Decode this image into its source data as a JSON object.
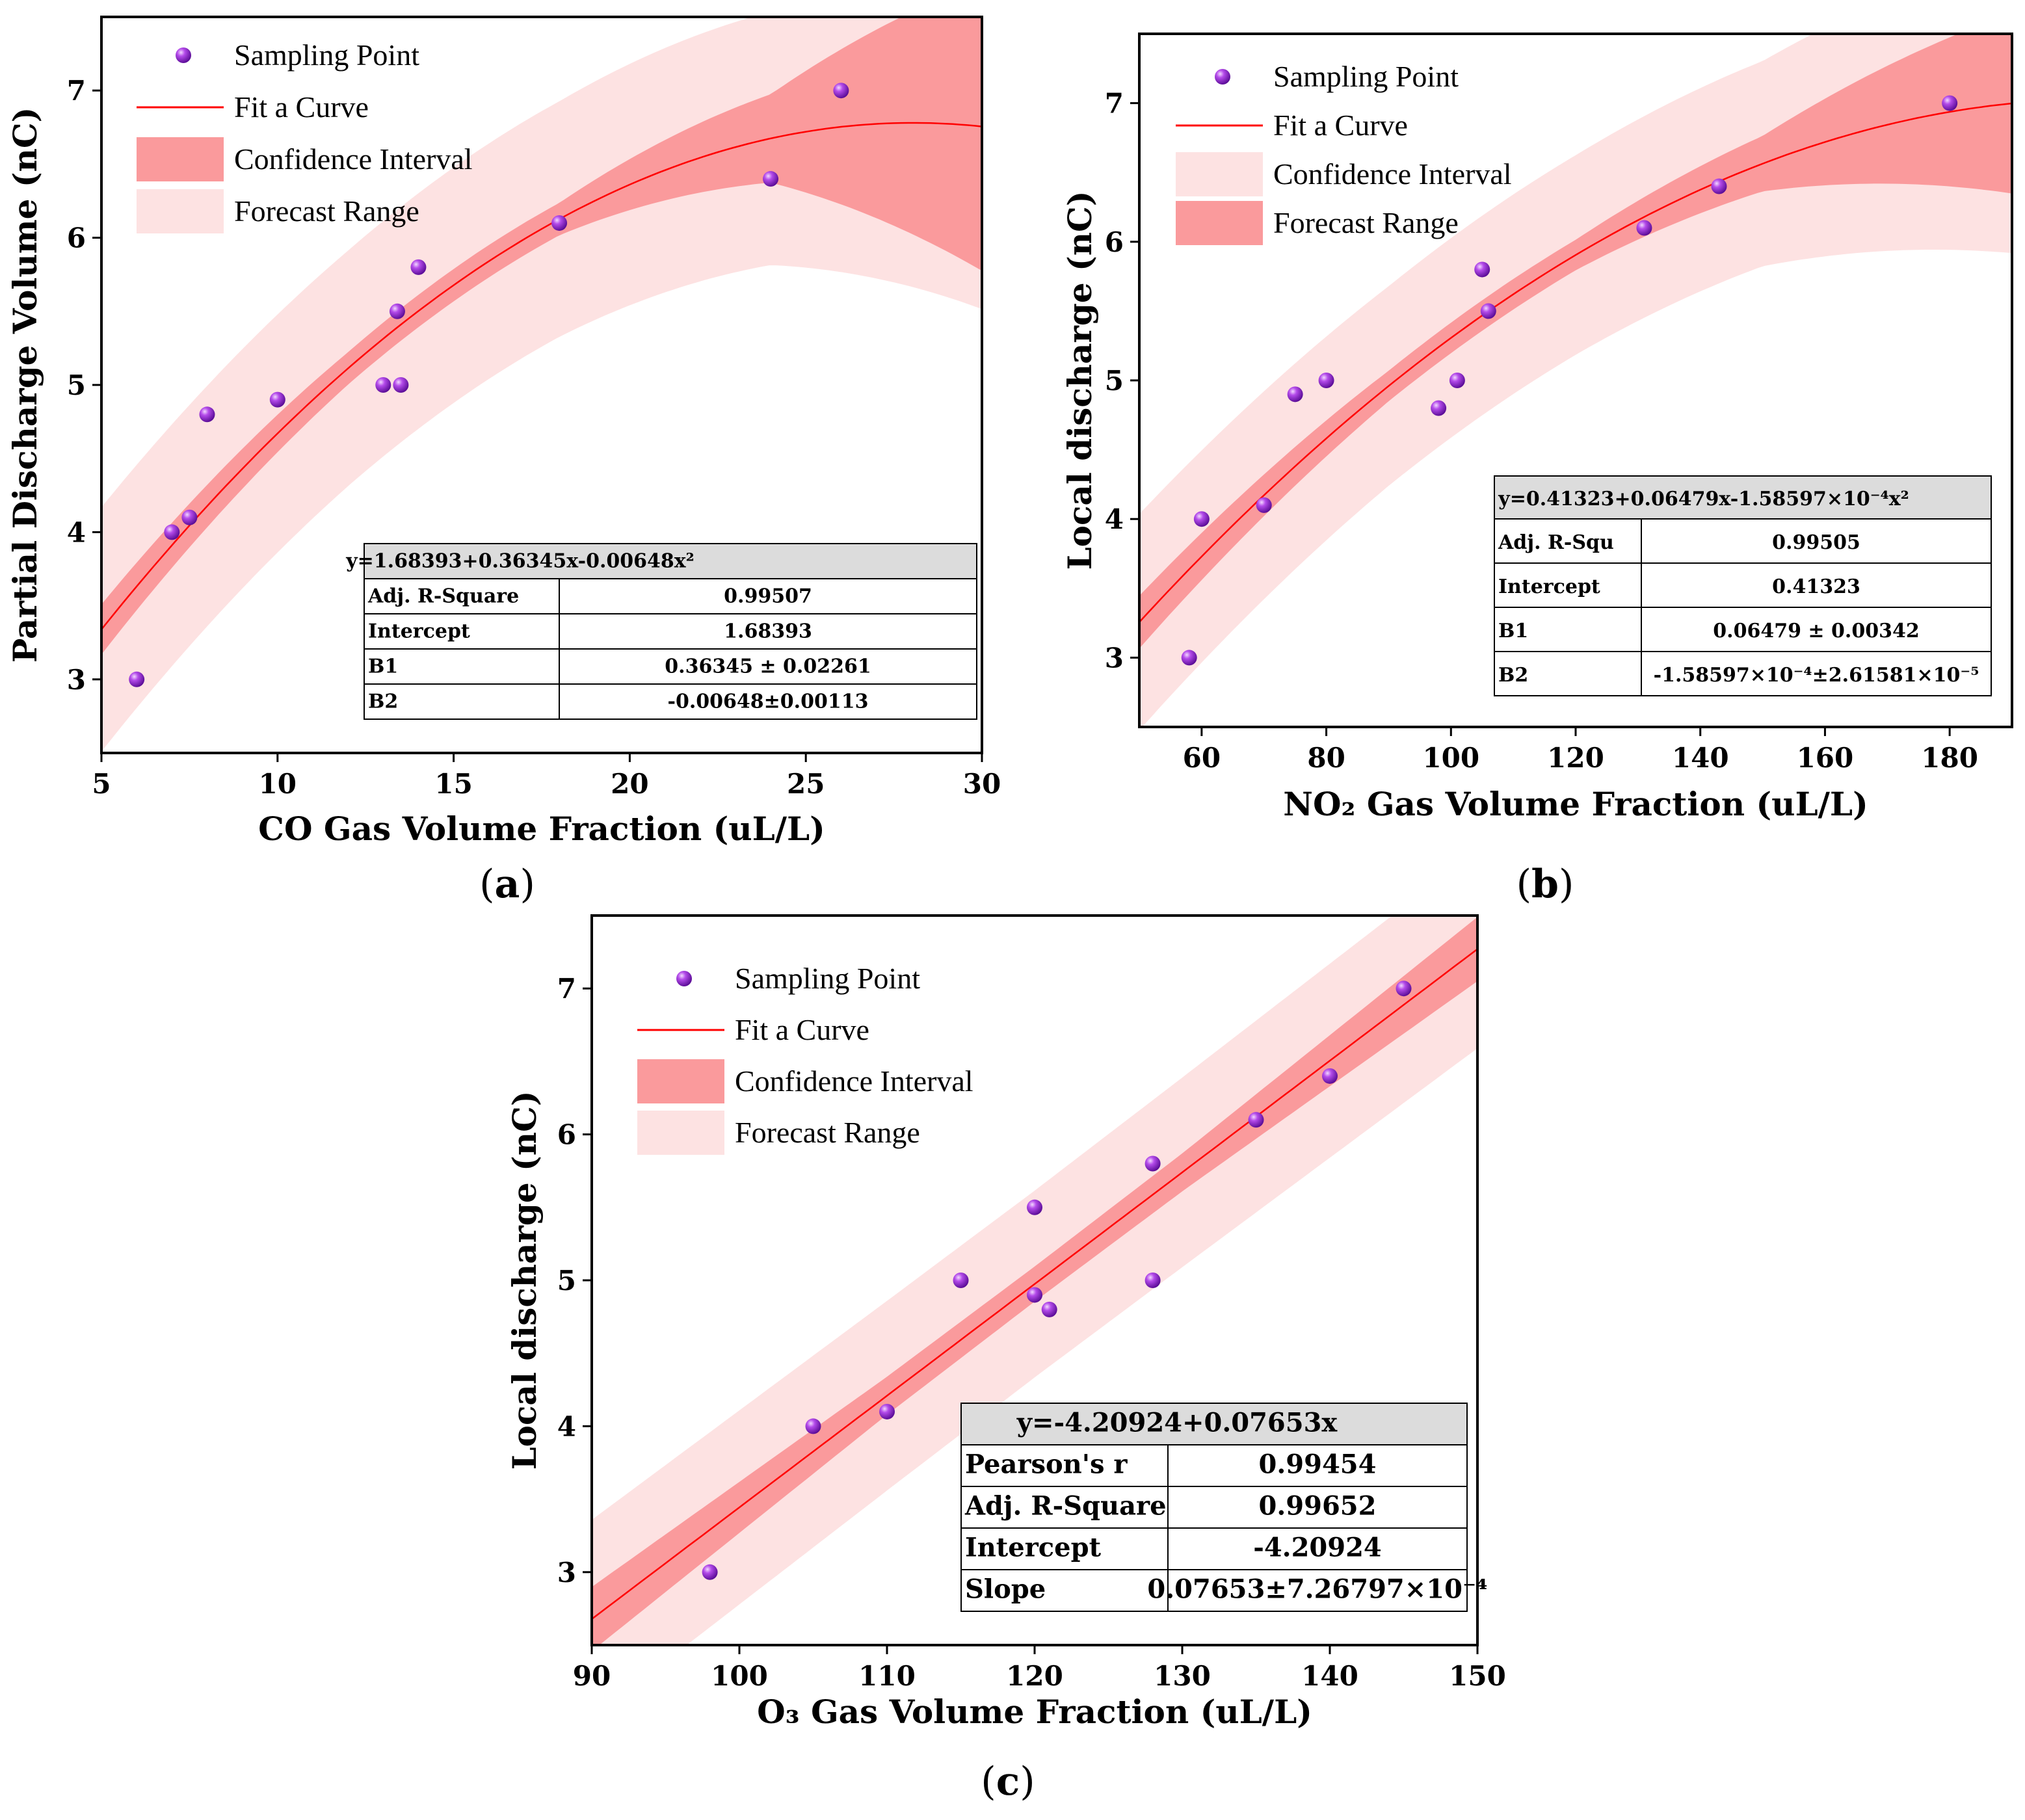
{
  "colors": {
    "forecast_band": "#FDE2E2",
    "confidence_band": "#FA9A9C",
    "fit_line": "#FF0000",
    "point": "#8E1FD6",
    "table_header_bg": "#DCDCDC"
  },
  "chart_data": [
    {
      "id": "a",
      "type": "scatter",
      "panel_label": "(a)",
      "panel_letter": "a",
      "xlabel": "CO Gas Volume Fraction (uL/L)",
      "ylabel": "Partial Discharge Volume (nC)",
      "xlim": [
        5,
        30
      ],
      "ylim": [
        2.5,
        7.5
      ],
      "xticks": [
        5,
        10,
        15,
        20,
        25,
        30
      ],
      "yticks": [
        3,
        4,
        5,
        6,
        7
      ],
      "fit": {
        "model": "quadratic",
        "coeffs": [
          1.68393,
          0.36345,
          -0.00648
        ]
      },
      "confidence_halfwidth": {
        "at_x": [
          5,
          12,
          18,
          24,
          30
        ],
        "values": [
          0.17,
          0.11,
          0.11,
          0.3,
          0.98
        ]
      },
      "forecast_halfwidth": {
        "at_x": [
          5,
          12,
          18,
          24,
          30
        ],
        "values": [
          0.83,
          0.8,
          0.8,
          0.86,
          1.24
        ]
      },
      "points": [
        {
          "x": 6,
          "y": 3.0
        },
        {
          "x": 7,
          "y": 4.0
        },
        {
          "x": 7.5,
          "y": 4.1
        },
        {
          "x": 8,
          "y": 4.8
        },
        {
          "x": 10,
          "y": 4.9
        },
        {
          "x": 13,
          "y": 5.0
        },
        {
          "x": 13.5,
          "y": 5.0
        },
        {
          "x": 13.4,
          "y": 5.5
        },
        {
          "x": 14,
          "y": 5.8
        },
        {
          "x": 18,
          "y": 6.1
        },
        {
          "x": 24,
          "y": 6.4
        },
        {
          "x": 26,
          "y": 7.0
        }
      ],
      "legend": [
        {
          "kind": "point",
          "label": "Sampling Point"
        },
        {
          "kind": "line",
          "label": "Fit a Curve"
        },
        {
          "kind": "confidence",
          "label": "Confidence Interval"
        },
        {
          "kind": "forecast",
          "label": "Forecast Range"
        }
      ],
      "stats_table": {
        "equation": "y=1.68393+0.36345x-0.00648x²",
        "rows": [
          [
            "Adj. R-Square",
            "0.99507"
          ],
          [
            "Intercept",
            "1.68393"
          ],
          [
            "B1",
            "0.36345 ± 0.02261"
          ],
          [
            "B2",
            "-0.00648±0.00113"
          ]
        ]
      }
    },
    {
      "id": "b",
      "type": "scatter",
      "panel_label": "(b)",
      "panel_letter": "b",
      "xlabel": "NO₂ Gas Volume Fraction (uL/L)",
      "ylabel": "Local discharge (nC)",
      "xlim": [
        50,
        190
      ],
      "ylim": [
        2.5,
        7.5
      ],
      "xticks": [
        60,
        80,
        100,
        120,
        140,
        160,
        180
      ],
      "yticks": [
        3,
        4,
        5,
        6,
        7
      ],
      "fit": {
        "model": "quadratic",
        "coeffs": [
          0.41323,
          0.06479,
          -0.000158597
        ]
      },
      "confidence_halfwidth": {
        "at_x": [
          50,
          90,
          120,
          150,
          190
        ],
        "values": [
          0.19,
          0.11,
          0.11,
          0.2,
          0.65
        ]
      },
      "forecast_halfwidth": {
        "at_x": [
          50,
          90,
          120,
          150,
          190
        ],
        "values": [
          0.78,
          0.72,
          0.72,
          0.74,
          1.08
        ]
      },
      "points": [
        {
          "x": 58,
          "y": 3.0
        },
        {
          "x": 60,
          "y": 4.0
        },
        {
          "x": 70,
          "y": 4.1
        },
        {
          "x": 75,
          "y": 4.9
        },
        {
          "x": 80,
          "y": 5.0
        },
        {
          "x": 98,
          "y": 4.8
        },
        {
          "x": 101,
          "y": 5.0
        },
        {
          "x": 105,
          "y": 5.8
        },
        {
          "x": 106,
          "y": 5.5
        },
        {
          "x": 131,
          "y": 6.1
        },
        {
          "x": 143,
          "y": 6.4
        },
        {
          "x": 180,
          "y": 7.0
        }
      ],
      "legend": [
        {
          "kind": "point",
          "label": "Sampling Point"
        },
        {
          "kind": "line",
          "label": "Fit a Curve"
        },
        {
          "kind": "forecast",
          "label": "Confidence Interval"
        },
        {
          "kind": "confidence",
          "label": "Forecast Range"
        }
      ],
      "stats_table": {
        "equation": "y=0.41323+0.06479x-1.58597×10⁻⁴x²",
        "rows": [
          [
            "Adj. R-Squ",
            "0.99505"
          ],
          [
            "Intercept",
            "0.41323"
          ],
          [
            "B1",
            "0.06479 ± 0.00342"
          ],
          [
            "B2",
            "-1.58597×10⁻⁴±2.61581×10⁻⁵"
          ]
        ]
      }
    },
    {
      "id": "c",
      "type": "scatter",
      "panel_label": "(c)",
      "panel_letter": "c",
      "xlabel": "O₃  Gas Volume Fraction (uL/L)",
      "ylabel": "Local discharge (nC)",
      "xlim": [
        90,
        150
      ],
      "ylim": [
        2.5,
        7.5
      ],
      "xticks": [
        90,
        100,
        110,
        120,
        130,
        140,
        150
      ],
      "yticks": [
        3,
        4,
        5,
        6,
        7
      ],
      "fit": {
        "model": "linear",
        "coeffs": [
          -4.20924,
          0.07653
        ]
      },
      "confidence_halfwidth": {
        "at_x": [
          90,
          110,
          120,
          130,
          150
        ],
        "values": [
          0.22,
          0.13,
          0.12,
          0.13,
          0.22
        ]
      },
      "forecast_halfwidth": {
        "at_x": [
          90,
          110,
          120,
          130,
          150
        ],
        "values": [
          0.68,
          0.65,
          0.64,
          0.65,
          0.68
        ]
      },
      "points": [
        {
          "x": 98,
          "y": 3.0
        },
        {
          "x": 105,
          "y": 4.0
        },
        {
          "x": 110,
          "y": 4.1
        },
        {
          "x": 115,
          "y": 5.0
        },
        {
          "x": 120,
          "y": 5.5
        },
        {
          "x": 120,
          "y": 4.9
        },
        {
          "x": 121,
          "y": 4.8
        },
        {
          "x": 128,
          "y": 5.8
        },
        {
          "x": 128,
          "y": 5.0
        },
        {
          "x": 135,
          "y": 6.1
        },
        {
          "x": 140,
          "y": 6.4
        },
        {
          "x": 145,
          "y": 7.0
        }
      ],
      "legend": [
        {
          "kind": "point",
          "label": "Sampling Point"
        },
        {
          "kind": "line",
          "label": "Fit a Curve"
        },
        {
          "kind": "confidence",
          "label": "Confidence Interval"
        },
        {
          "kind": "forecast",
          "label": "Forecast Range"
        }
      ],
      "stats_table": {
        "equation": "y=-4.20924+0.07653x",
        "rows": [
          [
            "Pearson's r",
            "0.99454"
          ],
          [
            "Adj. R-Square",
            "0.99652"
          ],
          [
            "Intercept",
            "-4.20924"
          ],
          [
            "Slope",
            "0.07653±7.26797×10⁻⁴"
          ]
        ]
      }
    }
  ]
}
